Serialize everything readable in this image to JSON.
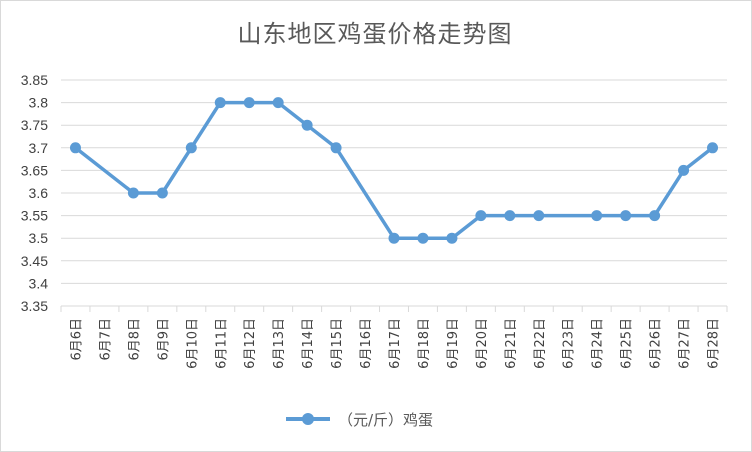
{
  "chart_data": {
    "type": "line",
    "title": "山东地区鸡蛋价格走势图",
    "categories": [
      "6月6日",
      "6月7日",
      "6月8日",
      "6月9日",
      "6月10日",
      "6月11日",
      "6月12日",
      "6月13日",
      "6月14日",
      "6月15日",
      "6月16日",
      "6月17日",
      "6月18日",
      "6月19日",
      "6月20日",
      "6月21日",
      "6月22日",
      "6月23日",
      "6月24日",
      "6月25日",
      "6月26日",
      "6月27日",
      "6月28日"
    ],
    "series": [
      {
        "name": "（元/斤）鸡蛋",
        "color": "#5b9bd5",
        "points": [
          {
            "x": "6月6日",
            "y": 3.7
          },
          {
            "x": "6月8日",
            "y": 3.6
          },
          {
            "x": "6月9日",
            "y": 3.6
          },
          {
            "x": "6月10日",
            "y": 3.7
          },
          {
            "x": "6月11日",
            "y": 3.8
          },
          {
            "x": "6月12日",
            "y": 3.8
          },
          {
            "x": "6月13日",
            "y": 3.8
          },
          {
            "x": "6月14日",
            "y": 3.75
          },
          {
            "x": "6月15日",
            "y": 3.7
          },
          {
            "x": "6月17日",
            "y": 3.5
          },
          {
            "x": "6月18日",
            "y": 3.5
          },
          {
            "x": "6月19日",
            "y": 3.5
          },
          {
            "x": "6月20日",
            "y": 3.55
          },
          {
            "x": "6月21日",
            "y": 3.55
          },
          {
            "x": "6月22日",
            "y": 3.55
          },
          {
            "x": "6月24日",
            "y": 3.55
          },
          {
            "x": "6月25日",
            "y": 3.55
          },
          {
            "x": "6月26日",
            "y": 3.55
          },
          {
            "x": "6月27日",
            "y": 3.65
          },
          {
            "x": "6月28日",
            "y": 3.7
          }
        ]
      }
    ],
    "yticks": [
      "3.85",
      "3.8",
      "3.75",
      "3.7",
      "3.65",
      "3.6",
      "3.55",
      "3.5",
      "3.45",
      "3.4",
      "3.35"
    ],
    "ylim": [
      3.35,
      3.85
    ],
    "grid": true,
    "legend_position": "bottom"
  }
}
